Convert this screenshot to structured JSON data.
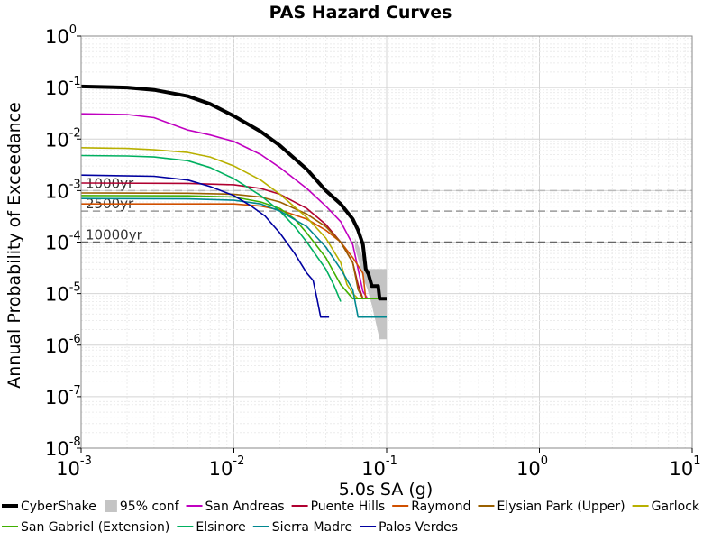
{
  "chart_data": {
    "type": "line",
    "title": "PAS Hazard Curves",
    "xlabel": "5.0s SA (g)",
    "ylabel": "Annual Probability of Exceedance",
    "x_scale": "log",
    "y_scale": "log",
    "xlim": [
      0.001,
      10
    ],
    "ylim": [
      1e-08,
      1
    ],
    "grid": true,
    "legend_position": "bottom",
    "x_ticks": [
      {
        "base": "10",
        "exp": "-3"
      },
      {
        "base": "10",
        "exp": "-2"
      },
      {
        "base": "10",
        "exp": "-1"
      },
      {
        "base": "10",
        "exp": "0"
      },
      {
        "base": "10",
        "exp": "1"
      }
    ],
    "y_ticks": [
      {
        "base": "10",
        "exp": "0"
      },
      {
        "base": "10",
        "exp": "-1"
      },
      {
        "base": "10",
        "exp": "-2"
      },
      {
        "base": "10",
        "exp": "-3"
      },
      {
        "base": "10",
        "exp": "-4"
      },
      {
        "base": "10",
        "exp": "-5"
      },
      {
        "base": "10",
        "exp": "-6"
      },
      {
        "base": "10",
        "exp": "-7"
      },
      {
        "base": "10",
        "exp": "-8"
      }
    ],
    "reference_lines": [
      {
        "label": "1000yr",
        "y": 0.001,
        "color": "#bbbbbb"
      },
      {
        "label": "2500yr",
        "y": 0.0004,
        "color": "#999999"
      },
      {
        "label": "10000yr",
        "y": 0.0001,
        "color": "#666666"
      }
    ],
    "confidence_band": {
      "name": "95% conf",
      "color": "#c4c4c4",
      "upper": [
        [
          0.062,
          0.00012
        ],
        [
          0.066,
          8e-05
        ],
        [
          0.07,
          5e-05
        ],
        [
          0.075,
          3e-05
        ],
        [
          0.08,
          3e-05
        ],
        [
          0.09,
          3e-05
        ],
        [
          0.1,
          3e-05
        ]
      ],
      "lower": [
        [
          0.062,
          8e-05
        ],
        [
          0.066,
          4e-05
        ],
        [
          0.07,
          2e-05
        ],
        [
          0.075,
          1.2e-05
        ],
        [
          0.08,
          6e-06
        ],
        [
          0.09,
          1.3e-06
        ],
        [
          0.1,
          1.3e-06
        ]
      ]
    },
    "series": [
      {
        "name": "CyberShake",
        "color": "#000000",
        "width": 4,
        "points": [
          [
            0.001,
            0.105
          ],
          [
            0.002,
            0.1
          ],
          [
            0.003,
            0.09
          ],
          [
            0.005,
            0.068
          ],
          [
            0.007,
            0.048
          ],
          [
            0.01,
            0.028
          ],
          [
            0.015,
            0.014
          ],
          [
            0.02,
            0.0075
          ],
          [
            0.03,
            0.0026
          ],
          [
            0.04,
            0.001
          ],
          [
            0.05,
            0.00055
          ],
          [
            0.06,
            0.00028
          ],
          [
            0.065,
            0.00017
          ],
          [
            0.07,
            9e-05
          ],
          [
            0.073,
            3e-05
          ],
          [
            0.076,
            2.4e-05
          ],
          [
            0.08,
            1.4e-05
          ],
          [
            0.088,
            1.4e-05
          ],
          [
            0.09,
            8e-06
          ],
          [
            0.1,
            8e-06
          ]
        ]
      },
      {
        "name": "San Andreas",
        "color": "#c000c0",
        "width": 1.6,
        "points": [
          [
            0.001,
            0.031
          ],
          [
            0.002,
            0.03
          ],
          [
            0.003,
            0.026
          ],
          [
            0.004,
            0.019
          ],
          [
            0.005,
            0.015
          ],
          [
            0.007,
            0.012
          ],
          [
            0.01,
            0.009
          ],
          [
            0.015,
            0.005
          ],
          [
            0.02,
            0.0028
          ],
          [
            0.03,
            0.0011
          ],
          [
            0.04,
            0.0005
          ],
          [
            0.05,
            0.00025
          ],
          [
            0.06,
            9e-05
          ],
          [
            0.065,
            3e-05
          ],
          [
            0.07,
            1.1e-05
          ],
          [
            0.075,
            8e-06
          ],
          [
            0.1,
            8e-06
          ]
        ]
      },
      {
        "name": "Puente Hills",
        "color": "#b00030",
        "width": 1.6,
        "points": [
          [
            0.001,
            0.0014
          ],
          [
            0.005,
            0.00138
          ],
          [
            0.01,
            0.0013
          ],
          [
            0.015,
            0.0011
          ],
          [
            0.02,
            0.00085
          ],
          [
            0.03,
            0.00045
          ],
          [
            0.04,
            0.00022
          ],
          [
            0.05,
            0.0001
          ],
          [
            0.06,
            4e-05
          ],
          [
            0.065,
            1.5e-05
          ],
          [
            0.07,
            8e-06
          ],
          [
            0.1,
            8e-06
          ]
        ]
      },
      {
        "name": "Raymond",
        "color": "#d05000",
        "width": 1.6,
        "points": [
          [
            0.001,
            0.00055
          ],
          [
            0.005,
            0.00055
          ],
          [
            0.01,
            0.00055
          ],
          [
            0.015,
            0.0005
          ],
          [
            0.02,
            0.00042
          ],
          [
            0.03,
            0.00028
          ],
          [
            0.04,
            0.00017
          ],
          [
            0.05,
            0.0001
          ],
          [
            0.06,
            5e-05
          ],
          [
            0.07,
            2.5e-05
          ],
          [
            0.073,
            8e-06
          ],
          [
            0.1,
            8e-06
          ]
        ]
      },
      {
        "name": "Elysian Park (Upper)",
        "color": "#9a6000",
        "width": 1.6,
        "points": [
          [
            0.001,
            0.0009
          ],
          [
            0.005,
            0.00089
          ],
          [
            0.01,
            0.00085
          ],
          [
            0.015,
            0.00075
          ],
          [
            0.02,
            0.0006
          ],
          [
            0.03,
            0.00035
          ],
          [
            0.04,
            0.0002
          ],
          [
            0.05,
            0.0001
          ],
          [
            0.06,
            4e-05
          ],
          [
            0.065,
            1.2e-05
          ],
          [
            0.07,
            8e-06
          ],
          [
            0.1,
            8e-06
          ]
        ]
      },
      {
        "name": "Garlock",
        "color": "#b8b000",
        "width": 1.6,
        "points": [
          [
            0.001,
            0.0068
          ],
          [
            0.002,
            0.0066
          ],
          [
            0.003,
            0.0062
          ],
          [
            0.005,
            0.0055
          ],
          [
            0.007,
            0.0045
          ],
          [
            0.01,
            0.003
          ],
          [
            0.015,
            0.0016
          ],
          [
            0.02,
            0.00085
          ],
          [
            0.03,
            0.0003
          ],
          [
            0.04,
            0.00012
          ],
          [
            0.05,
            4e-05
          ],
          [
            0.055,
            1.5e-05
          ],
          [
            0.06,
            1e-05
          ],
          [
            0.065,
            8e-06
          ],
          [
            0.1,
            8e-06
          ]
        ]
      },
      {
        "name": "San Gabriel (Extension)",
        "color": "#40b000",
        "width": 1.6,
        "points": [
          [
            0.001,
            0.0008
          ],
          [
            0.005,
            0.00079
          ],
          [
            0.01,
            0.00075
          ],
          [
            0.015,
            0.0006
          ],
          [
            0.02,
            0.00045
          ],
          [
            0.025,
            0.00028
          ],
          [
            0.03,
            0.00015
          ],
          [
            0.04,
            5e-05
          ],
          [
            0.05,
            1.5e-05
          ],
          [
            0.06,
            8e-06
          ],
          [
            0.1,
            8e-06
          ]
        ]
      },
      {
        "name": "Elsinore",
        "color": "#00b060",
        "width": 1.6,
        "points": [
          [
            0.001,
            0.0048
          ],
          [
            0.002,
            0.0047
          ],
          [
            0.003,
            0.0045
          ],
          [
            0.005,
            0.0038
          ],
          [
            0.007,
            0.0028
          ],
          [
            0.01,
            0.0017
          ],
          [
            0.015,
            0.0008
          ],
          [
            0.02,
            0.0004
          ],
          [
            0.025,
            0.0002
          ],
          [
            0.03,
            0.0001
          ],
          [
            0.04,
            3e-05
          ],
          [
            0.045,
            1.5e-05
          ],
          [
            0.05,
            7e-06
          ]
        ]
      },
      {
        "name": "Sierra Madre",
        "color": "#008890",
        "width": 1.6,
        "points": [
          [
            0.001,
            0.0007
          ],
          [
            0.005,
            0.00069
          ],
          [
            0.01,
            0.00065
          ],
          [
            0.015,
            0.00055
          ],
          [
            0.02,
            0.0004
          ],
          [
            0.03,
            0.0002
          ],
          [
            0.04,
            8e-05
          ],
          [
            0.05,
            3e-05
          ],
          [
            0.06,
            1.2e-05
          ],
          [
            0.065,
            3.5e-06
          ],
          [
            0.1,
            3.5e-06
          ]
        ]
      },
      {
        "name": "Palos Verdes",
        "color": "#0000a0",
        "width": 1.6,
        "points": [
          [
            0.001,
            0.002
          ],
          [
            0.003,
            0.0019
          ],
          [
            0.005,
            0.0016
          ],
          [
            0.007,
            0.0012
          ],
          [
            0.01,
            0.0008
          ],
          [
            0.013,
            0.0005
          ],
          [
            0.016,
            0.00032
          ],
          [
            0.02,
            0.00015
          ],
          [
            0.025,
            6e-05
          ],
          [
            0.03,
            2.5e-05
          ],
          [
            0.033,
            1.8e-05
          ],
          [
            0.035,
            8e-06
          ],
          [
            0.037,
            3.5e-06
          ],
          [
            0.042,
            3.5e-06
          ]
        ]
      }
    ],
    "legend": [
      {
        "label": "CyberShake",
        "color": "#000000",
        "kind": "line-thick"
      },
      {
        "label": "95% conf",
        "color": "#c4c4c4",
        "kind": "box"
      },
      {
        "label": "San Andreas",
        "color": "#c000c0",
        "kind": "line"
      },
      {
        "label": "Puente Hills",
        "color": "#b00030",
        "kind": "line"
      },
      {
        "label": "Raymond",
        "color": "#d05000",
        "kind": "line"
      },
      {
        "label": "Elysian Park (Upper)",
        "color": "#9a6000",
        "kind": "line"
      },
      {
        "label": "Garlock",
        "color": "#b8b000",
        "kind": "line"
      },
      {
        "label": "San Gabriel (Extension)",
        "color": "#40b000",
        "kind": "line"
      },
      {
        "label": "Elsinore",
        "color": "#00b060",
        "kind": "line"
      },
      {
        "label": "Sierra Madre",
        "color": "#008890",
        "kind": "line"
      },
      {
        "label": "Palos Verdes",
        "color": "#0000a0",
        "kind": "line"
      }
    ]
  }
}
